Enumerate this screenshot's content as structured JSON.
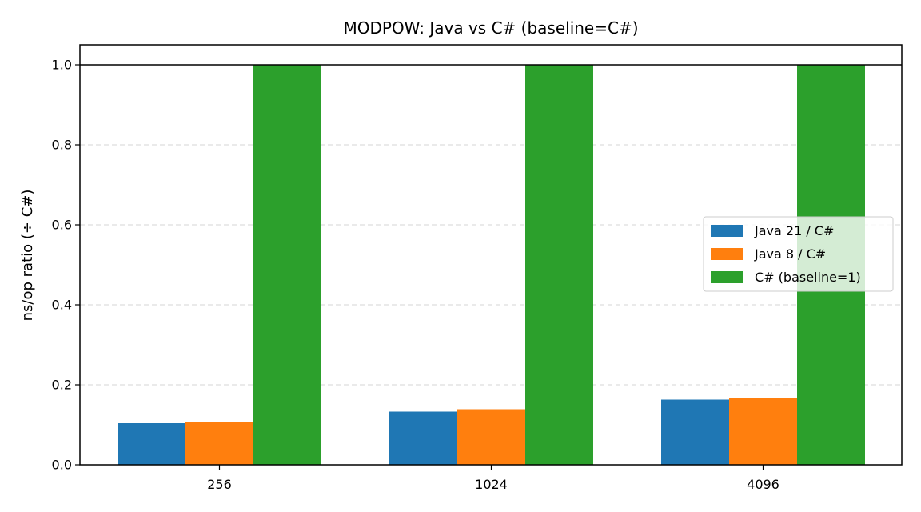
{
  "chart_data": {
    "type": "bar",
    "title": "MODPOW: Java vs C# (baseline=C#)",
    "xlabel": "",
    "ylabel": "ns/op ratio (÷ C#)",
    "categories": [
      "256",
      "1024",
      "4096"
    ],
    "series": [
      {
        "name": "Java 21 / C#",
        "color": "#1f77b4",
        "values": [
          0.104,
          0.133,
          0.163
        ]
      },
      {
        "name": "Java 8 / C#",
        "color": "#ff7f0e",
        "values": [
          0.106,
          0.139,
          0.166
        ]
      },
      {
        "name": "C# (baseline=1)",
        "color": "#2ca02c",
        "values": [
          1.0,
          1.0,
          1.0
        ]
      }
    ],
    "ylim": [
      0,
      1.05
    ],
    "yticks": [
      0.0,
      0.2,
      0.4,
      0.6,
      0.8,
      1.0
    ],
    "ytick_labels": [
      "0.0",
      "0.2",
      "0.4",
      "0.6",
      "0.8",
      "1.0"
    ],
    "reference_line": 1.0,
    "grid": "y-dashed",
    "legend_position": "center-right"
  }
}
